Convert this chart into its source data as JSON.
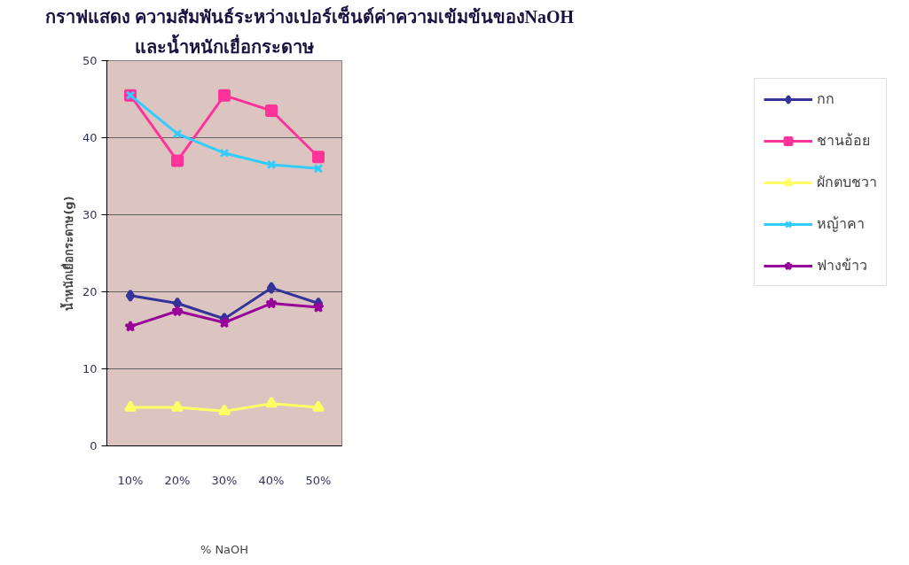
{
  "chart_data": {
    "type": "line",
    "title": "กราฟแสดง ความสัมพันธ์ระหว่างเปอร์เซ็นต์ค่าความเข้มข้นของNaOH",
    "subtitle": "และน้ำหนักเยื่อกระดาษ",
    "xlabel": "% NaOH",
    "ylabel": "น้ำหนักเยื่อกระดาษ(g)",
    "categories": [
      "10%",
      "20%",
      "30%",
      "40%",
      "50%"
    ],
    "series": [
      {
        "name": "กก",
        "color": "#333399",
        "marker": "diamond",
        "values": [
          19.5,
          18.5,
          16.5,
          20.5,
          18.5
        ]
      },
      {
        "name": "ชานอ้อย",
        "color": "#ff3399",
        "marker": "square",
        "values": [
          45.5,
          37,
          45.5,
          43.5,
          37.5
        ]
      },
      {
        "name": "ผักตบชวา",
        "color": "#ffff66",
        "marker": "triangle",
        "values": [
          5,
          5,
          4.5,
          5.5,
          5
        ]
      },
      {
        "name": "หญ้าคา",
        "color": "#33ccff",
        "marker": "cross",
        "values": [
          45.5,
          40.5,
          38,
          36.5,
          36
        ]
      },
      {
        "name": "ฟางข้าว",
        "color": "#990099",
        "marker": "star",
        "values": [
          15.5,
          17.5,
          16,
          18.5,
          18
        ]
      }
    ],
    "ylim": [
      0,
      50
    ],
    "yticks": [
      0,
      10,
      20,
      30,
      40,
      50
    ],
    "grid": "y",
    "legend": "right",
    "line_style": "solid"
  }
}
